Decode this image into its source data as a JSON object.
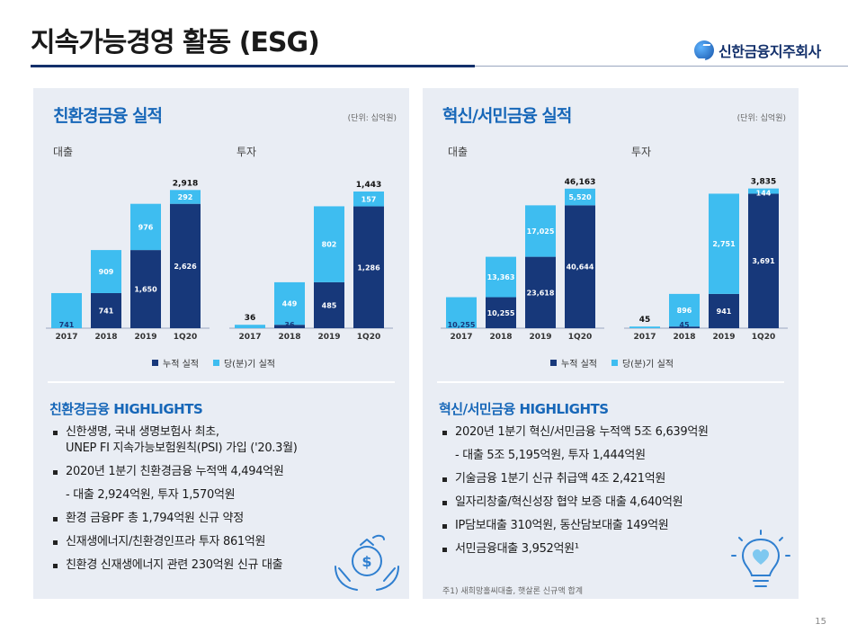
{
  "page": {
    "title": "지속가능경영 활동 (ESG)",
    "logo_text": "신한금융지주회사",
    "page_number": "15"
  },
  "colors": {
    "dark": "#17387a",
    "light": "#3ebdf0",
    "accent": "#1767b8"
  },
  "left": {
    "title": "친환경금융 실적",
    "unit": "(단위: 십억원)",
    "loan_label": "대출",
    "invest_label": "투자",
    "legend": [
      "누적 실적",
      "당(분)기 실적"
    ],
    "highlights_title": "친환경금융 HIGHLIGHTS",
    "bullets": [
      {
        "bullet": true,
        "lines": [
          "신한생명, 국내 생명보험사 최초,",
          "UNEP FI 지속가능보험원칙(PSI) 가입 ('20.3월)"
        ]
      },
      {
        "bullet": true,
        "lines": [
          "2020년 1분기 친환경금융 누적액 4,494억원"
        ]
      },
      {
        "bullet": false,
        "lines": [
          "- 대출 2,924억원, 투자 1,570억원"
        ]
      },
      {
        "bullet": true,
        "lines": [
          "환경 금융PF 총 1,794억원 신규 약정"
        ]
      },
      {
        "bullet": true,
        "lines": [
          "신재생에너지/친환경인프라 투자 861억원"
        ]
      },
      {
        "bullet": true,
        "lines": [
          "친환경 신재생에너지 관련 230억원 신규 대출"
        ]
      }
    ]
  },
  "right": {
    "title": "혁신/서민금융 실적",
    "unit": "(단위: 십억원)",
    "loan_label": "대출",
    "invest_label": "투자",
    "legend": [
      "누적 실적",
      "당(분)기 실적"
    ],
    "highlights_title": "혁신/서민금융 HIGHLIGHTS",
    "bullets": [
      {
        "bullet": true,
        "lines": [
          "2020년 1분기 혁신/서민금융 누적액 5조 6,639억원"
        ]
      },
      {
        "bullet": false,
        "lines": [
          "- 대출 5조 5,195억원, 투자 1,444억원"
        ]
      },
      {
        "bullet": true,
        "lines": [
          "기술금융 1분기 신규 취급액 4조 2,421억원"
        ]
      },
      {
        "bullet": true,
        "lines": [
          "일자리창출/혁신성장 협약 보증 대출 4,640억원"
        ]
      },
      {
        "bullet": true,
        "lines": [
          "IP담보대출 310억원, 동산담보대출 149억원"
        ]
      },
      {
        "bullet": true,
        "lines": [
          "서민금융대출 3,952억원¹"
        ]
      }
    ],
    "footnote": "주1) 새희망홀씨대출, 햇살론 신규액 합계"
  },
  "chart_data": [
    {
      "type": "bar",
      "panel": "친환경금융 실적",
      "subtitle": "대출",
      "stacked": true,
      "categories": [
        "2017",
        "2018",
        "2019",
        "1Q20"
      ],
      "series": [
        {
          "name": "누적 실적",
          "values": [
            0,
            741,
            1650,
            2626
          ]
        },
        {
          "name": "당(분)기 실적",
          "values": [
            741,
            909,
            976,
            292
          ]
        }
      ],
      "totals": [
        null,
        null,
        null,
        "2,918"
      ],
      "bottom_labels": [
        "741",
        "741",
        "1,650",
        "2,626"
      ],
      "top_labels": [
        null,
        "909",
        "976",
        "292"
      ],
      "ylim": [
        0,
        3000
      ]
    },
    {
      "type": "bar",
      "panel": "친환경금융 실적",
      "subtitle": "투자",
      "stacked": true,
      "categories": [
        "2017",
        "2018",
        "2019",
        "1Q20"
      ],
      "series": [
        {
          "name": "누적 실적",
          "values": [
            0,
            36,
            485,
            1286
          ]
        },
        {
          "name": "당(분)기 실적",
          "values": [
            36,
            449,
            802,
            157
          ]
        }
      ],
      "totals": [
        "36",
        null,
        null,
        "1,443"
      ],
      "bottom_labels": [
        null,
        "36",
        "485",
        "1,286"
      ],
      "top_labels": [
        null,
        "449",
        "802",
        "157"
      ],
      "ylim": [
        0,
        1500
      ]
    },
    {
      "type": "bar",
      "panel": "혁신/서민금융 실적",
      "subtitle": "대출",
      "stacked": true,
      "categories": [
        "2017",
        "2018",
        "2019",
        "1Q20"
      ],
      "series": [
        {
          "name": "누적 실적",
          "values": [
            0,
            10255,
            23618,
            40644
          ]
        },
        {
          "name": "당(분)기 실적",
          "values": [
            10255,
            13363,
            17025,
            5520
          ]
        }
      ],
      "totals": [
        null,
        null,
        null,
        "46,163"
      ],
      "bottom_labels": [
        "10,255",
        "10,255",
        "23,618",
        "40,644"
      ],
      "top_labels": [
        null,
        "13,363",
        "17,025",
        "5,520"
      ],
      "ylim": [
        0,
        47000
      ]
    },
    {
      "type": "bar",
      "panel": "혁신/서민금융 실적",
      "subtitle": "투자",
      "stacked": true,
      "categories": [
        "2017",
        "2018",
        "2019",
        "1Q20"
      ],
      "series": [
        {
          "name": "누적 실적",
          "values": [
            0,
            45,
            941,
            3691
          ]
        },
        {
          "name": "당(분)기 실적",
          "values": [
            45,
            896,
            2751,
            144
          ]
        }
      ],
      "totals": [
        "45",
        null,
        null,
        "3,835"
      ],
      "bottom_labels": [
        null,
        "45",
        "941",
        "3,691"
      ],
      "top_labels": [
        null,
        "896",
        "2,751",
        "144"
      ],
      "ylim": [
        0,
        3900
      ]
    }
  ]
}
